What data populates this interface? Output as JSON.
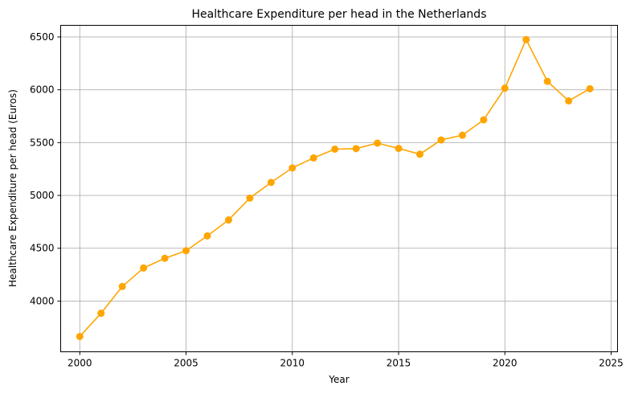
{
  "chart_data": {
    "type": "line",
    "title": "Healthcare Expenditure per head in the Netherlands",
    "xlabel": "Year",
    "ylabel": "Healthcare Expenditure per head (Euros)",
    "x": [
      2000,
      2001,
      2002,
      2003,
      2004,
      2005,
      2006,
      2007,
      2008,
      2009,
      2010,
      2011,
      2012,
      2013,
      2014,
      2015,
      2016,
      2017,
      2018,
      2019,
      2020,
      2021,
      2022,
      2023,
      2024
    ],
    "series": [
      {
        "color": "#ffa500",
        "marker": "circle",
        "values": [
          3665,
          3885,
          4138,
          4313,
          4405,
          4477,
          4617,
          4768,
          4975,
          5123,
          5260,
          5355,
          5438,
          5443,
          5495,
          5445,
          5390,
          5525,
          5570,
          5715,
          6015,
          6475,
          6080,
          5895,
          6010
        ]
      }
    ],
    "xlim": [
      1999.1,
      2025.3
    ],
    "ylim": [
      3520,
      6610
    ],
    "xticks": [
      "2000",
      "2005",
      "2010",
      "2015",
      "2020",
      "2025"
    ],
    "yticks": [
      "4000",
      "4500",
      "5000",
      "5500",
      "6000",
      "6500"
    ],
    "grid": true,
    "legend": false
  }
}
